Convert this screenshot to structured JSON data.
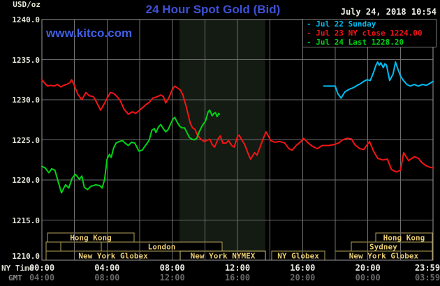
{
  "header": {
    "usd_oz": "USD/oz",
    "title": "24 Hour Spot Gold (Bid)",
    "datetime": "July 24, 2018 10:54",
    "watermark": "www.kitco.com"
  },
  "axes": {
    "ny_time_label": "NY Time",
    "gmt_label": "GMT",
    "y_ticks": [
      "1240.0",
      "1235.0",
      "1230.0",
      "1225.0",
      "1220.0",
      "1215.0",
      "1210.0"
    ],
    "x_ticks": [
      {
        "t": 0,
        "ny": "00:00",
        "gmt": "04:00"
      },
      {
        "t": 4,
        "ny": "04:00",
        "gmt": "08:00"
      },
      {
        "t": 8,
        "ny": "08:00",
        "gmt": "12:00"
      },
      {
        "t": 12,
        "ny": "12:00",
        "gmt": "16:00"
      },
      {
        "t": 16,
        "ny": "16:00",
        "gmt": "20:00"
      },
      {
        "t": 20,
        "ny": "20:00",
        "gmt": "00:00"
      },
      {
        "t": 23.983,
        "ny": "23:59",
        "gmt": "03:59"
      }
    ]
  },
  "legend": {
    "items": [
      {
        "label": "Jul 22 Sunday",
        "color": "#00bdf2"
      },
      {
        "label": "Jul 23 NY close 1224.00",
        "color": "#f51414"
      },
      {
        "label": "Jul 24 Last 1228.20",
        "color": "#00d314"
      }
    ]
  },
  "colors": {
    "background": "#000000",
    "grid": "#6f6f6f",
    "frame": "#9a9a9a",
    "nymex_band": "#131b13",
    "session_border": "#b3a258",
    "session_border_bright": "#d6c36e",
    "session_text": "#e8cb72",
    "legend_border": "#7a7a7a"
  },
  "nymex_band": {
    "t1": 8.44,
    "t2": 13.71
  },
  "sessions": {
    "rows": [
      {
        "boxes": [
          {
            "t1": 0.34,
            "t2": 5.66,
            "label": "Hong Kong"
          },
          {
            "t1": 20.49,
            "t2": 23.95,
            "label": "Hong Kong"
          }
        ]
      },
      {
        "boxes": [
          {
            "t1": 0.26,
            "t2": 1.16
          },
          {
            "t1": 1.16,
            "t2": 3.64
          },
          {
            "t1": 3.64,
            "t2": 11.06,
            "label": "London"
          },
          {
            "t1": 18.99,
            "t2": 23.95,
            "label": "Sydney",
            "label_t": 20.95
          }
        ]
      },
      {
        "boxes": [
          {
            "t1": 0.26,
            "t2": 8.49,
            "label": "New York Globex"
          },
          {
            "t1": 8.49,
            "t2": 13.71,
            "label": "New York NYMEX",
            "bright": true
          },
          {
            "t1": 14.1,
            "t2": 17.36,
            "label": "NY Globex"
          },
          {
            "t1": 18.0,
            "t2": 23.95,
            "label": "New York Globex"
          }
        ]
      }
    ]
  },
  "chart_data": {
    "type": "line",
    "title": "24 Hour Spot Gold (Bid)",
    "xlabel": "NY Time (hours)",
    "ylabel": "USD/oz",
    "xlim": [
      0,
      24
    ],
    "ylim": [
      1210,
      1240
    ],
    "grid": true,
    "legend_position": "top-right",
    "series": [
      {
        "name": "Jul 22 Sunday",
        "color": "#00bdf2",
        "points": [
          [
            17.3,
            1231.7
          ],
          [
            18.0,
            1231.7
          ],
          [
            18.15,
            1230.8
          ],
          [
            18.35,
            1230.2
          ],
          [
            18.6,
            1231.0
          ],
          [
            18.85,
            1231.3
          ],
          [
            19.1,
            1231.5
          ],
          [
            19.35,
            1231.8
          ],
          [
            19.55,
            1232.0
          ],
          [
            19.75,
            1232.3
          ],
          [
            19.95,
            1232.5
          ],
          [
            20.15,
            1232.4
          ],
          [
            20.35,
            1233.4
          ],
          [
            20.5,
            1234.3
          ],
          [
            20.6,
            1234.7
          ],
          [
            20.7,
            1234.3
          ],
          [
            20.8,
            1234.6
          ],
          [
            20.95,
            1234.0
          ],
          [
            21.05,
            1234.5
          ],
          [
            21.15,
            1234.3
          ],
          [
            21.34,
            1232.4
          ],
          [
            21.55,
            1233.2
          ],
          [
            21.7,
            1234.7
          ],
          [
            21.85,
            1233.8
          ],
          [
            22.0,
            1233.0
          ],
          [
            22.15,
            1232.5
          ],
          [
            22.4,
            1231.9
          ],
          [
            22.6,
            1231.7
          ],
          [
            22.85,
            1231.9
          ],
          [
            23.1,
            1231.7
          ],
          [
            23.35,
            1231.9
          ],
          [
            23.6,
            1231.8
          ],
          [
            23.85,
            1232.1
          ],
          [
            24.0,
            1232.3
          ]
        ]
      },
      {
        "name": "Jul 23 NY close 1224.00",
        "color": "#f51414",
        "points": [
          [
            0.0,
            1232.5
          ],
          [
            0.2,
            1232.0
          ],
          [
            0.35,
            1231.7
          ],
          [
            0.55,
            1231.8
          ],
          [
            0.75,
            1231.7
          ],
          [
            0.95,
            1231.9
          ],
          [
            1.15,
            1231.6
          ],
          [
            1.35,
            1231.8
          ],
          [
            1.5,
            1231.9
          ],
          [
            1.7,
            1232.1
          ],
          [
            1.83,
            1232.5
          ],
          [
            2.0,
            1231.7
          ],
          [
            2.2,
            1230.7
          ],
          [
            2.45,
            1230.0
          ],
          [
            2.7,
            1230.9
          ],
          [
            2.9,
            1230.5
          ],
          [
            3.15,
            1230.4
          ],
          [
            3.35,
            1229.7
          ],
          [
            3.6,
            1228.7
          ],
          [
            3.8,
            1229.4
          ],
          [
            3.95,
            1230.0
          ],
          [
            4.2,
            1230.9
          ],
          [
            4.4,
            1230.8
          ],
          [
            4.65,
            1230.3
          ],
          [
            4.8,
            1229.9
          ],
          [
            5.05,
            1228.8
          ],
          [
            5.3,
            1228.2
          ],
          [
            5.55,
            1228.5
          ],
          [
            5.75,
            1228.3
          ],
          [
            6.05,
            1228.8
          ],
          [
            6.45,
            1229.5
          ],
          [
            6.6,
            1229.7
          ],
          [
            6.8,
            1230.2
          ],
          [
            7.1,
            1230.4
          ],
          [
            7.3,
            1230.6
          ],
          [
            7.45,
            1230.4
          ],
          [
            7.6,
            1229.6
          ],
          [
            7.8,
            1230.3
          ],
          [
            8.0,
            1231.3
          ],
          [
            8.15,
            1231.7
          ],
          [
            8.3,
            1231.5
          ],
          [
            8.5,
            1231.2
          ],
          [
            8.65,
            1230.6
          ],
          [
            8.85,
            1229.2
          ],
          [
            9.1,
            1227.1
          ],
          [
            9.25,
            1226.5
          ],
          [
            9.4,
            1226.3
          ],
          [
            9.55,
            1225.6
          ],
          [
            9.75,
            1225.1
          ],
          [
            9.95,
            1224.8
          ],
          [
            10.1,
            1224.9
          ],
          [
            10.3,
            1225.1
          ],
          [
            10.45,
            1224.4
          ],
          [
            10.6,
            1224.1
          ],
          [
            10.8,
            1225.1
          ],
          [
            10.95,
            1225.5
          ],
          [
            11.1,
            1224.6
          ],
          [
            11.3,
            1224.6
          ],
          [
            11.45,
            1224.9
          ],
          [
            11.65,
            1224.3
          ],
          [
            11.8,
            1224.1
          ],
          [
            12.0,
            1225.4
          ],
          [
            12.1,
            1225.6
          ],
          [
            12.3,
            1224.9
          ],
          [
            12.45,
            1224.4
          ],
          [
            12.65,
            1223.3
          ],
          [
            12.8,
            1222.6
          ],
          [
            13.05,
            1223.4
          ],
          [
            13.2,
            1223.1
          ],
          [
            13.35,
            1223.9
          ],
          [
            13.55,
            1225.0
          ],
          [
            13.75,
            1226.0
          ],
          [
            14.05,
            1224.9
          ],
          [
            14.3,
            1224.7
          ],
          [
            14.6,
            1224.8
          ],
          [
            14.9,
            1224.6
          ],
          [
            15.15,
            1223.9
          ],
          [
            15.35,
            1223.7
          ],
          [
            15.6,
            1224.3
          ],
          [
            15.9,
            1224.8
          ],
          [
            16.05,
            1225.2
          ],
          [
            16.35,
            1224.6
          ],
          [
            16.6,
            1224.2
          ],
          [
            16.9,
            1223.9
          ],
          [
            17.2,
            1224.3
          ],
          [
            17.6,
            1224.3
          ],
          [
            17.9,
            1224.4
          ],
          [
            18.2,
            1224.6
          ],
          [
            18.45,
            1225.0
          ],
          [
            18.75,
            1225.2
          ],
          [
            19.0,
            1225.1
          ],
          [
            19.2,
            1224.4
          ],
          [
            19.5,
            1223.9
          ],
          [
            19.75,
            1223.8
          ],
          [
            20.1,
            1224.8
          ],
          [
            20.35,
            1223.6
          ],
          [
            20.6,
            1222.7
          ],
          [
            20.9,
            1222.5
          ],
          [
            21.2,
            1222.6
          ],
          [
            21.45,
            1221.3
          ],
          [
            21.75,
            1221.0
          ],
          [
            22.0,
            1221.2
          ],
          [
            22.2,
            1223.4
          ],
          [
            22.5,
            1222.4
          ],
          [
            22.85,
            1222.9
          ],
          [
            23.1,
            1222.7
          ],
          [
            23.3,
            1222.2
          ],
          [
            23.55,
            1221.8
          ],
          [
            23.8,
            1221.6
          ],
          [
            24.0,
            1221.5
          ]
        ]
      },
      {
        "name": "Jul 24 Last 1228.20",
        "color": "#00d314",
        "points": [
          [
            0.0,
            1221.7
          ],
          [
            0.2,
            1221.5
          ],
          [
            0.43,
            1220.9
          ],
          [
            0.6,
            1221.4
          ],
          [
            0.8,
            1221.2
          ],
          [
            1.0,
            1219.8
          ],
          [
            1.2,
            1218.4
          ],
          [
            1.45,
            1219.4
          ],
          [
            1.65,
            1219.0
          ],
          [
            1.85,
            1220.2
          ],
          [
            2.05,
            1220.7
          ],
          [
            2.3,
            1220.1
          ],
          [
            2.45,
            1220.5
          ],
          [
            2.6,
            1219.1
          ],
          [
            2.8,
            1218.8
          ],
          [
            3.0,
            1219.2
          ],
          [
            3.3,
            1219.4
          ],
          [
            3.55,
            1219.3
          ],
          [
            3.7,
            1219.0
          ],
          [
            3.85,
            1220.1
          ],
          [
            4.0,
            1222.6
          ],
          [
            4.15,
            1223.2
          ],
          [
            4.25,
            1222.8
          ],
          [
            4.4,
            1224.0
          ],
          [
            4.55,
            1224.6
          ],
          [
            4.75,
            1224.8
          ],
          [
            4.95,
            1224.9
          ],
          [
            5.1,
            1224.6
          ],
          [
            5.3,
            1224.3
          ],
          [
            5.5,
            1224.7
          ],
          [
            5.7,
            1224.6
          ],
          [
            5.95,
            1223.6
          ],
          [
            6.15,
            1223.7
          ],
          [
            6.35,
            1224.3
          ],
          [
            6.5,
            1224.7
          ],
          [
            6.6,
            1225.1
          ],
          [
            6.75,
            1226.2
          ],
          [
            6.9,
            1226.4
          ],
          [
            7.0,
            1225.9
          ],
          [
            7.15,
            1226.6
          ],
          [
            7.3,
            1226.9
          ],
          [
            7.45,
            1226.4
          ],
          [
            7.6,
            1226.0
          ],
          [
            7.75,
            1226.3
          ],
          [
            7.9,
            1227.0
          ],
          [
            8.05,
            1227.6
          ],
          [
            8.15,
            1227.8
          ],
          [
            8.3,
            1227.2
          ],
          [
            8.45,
            1226.7
          ],
          [
            8.6,
            1226.5
          ],
          [
            8.75,
            1226.5
          ],
          [
            8.9,
            1225.9
          ],
          [
            9.05,
            1225.3
          ],
          [
            9.2,
            1225.1
          ],
          [
            9.35,
            1225.0
          ],
          [
            9.5,
            1225.2
          ],
          [
            9.65,
            1226.0
          ],
          [
            9.85,
            1226.8
          ],
          [
            10.05,
            1227.4
          ],
          [
            10.2,
            1228.5
          ],
          [
            10.3,
            1228.7
          ],
          [
            10.45,
            1228.0
          ],
          [
            10.55,
            1228.3
          ],
          [
            10.65,
            1228.4
          ],
          [
            10.75,
            1227.9
          ],
          [
            10.85,
            1228.3
          ],
          [
            10.9,
            1228.2
          ]
        ]
      }
    ]
  }
}
